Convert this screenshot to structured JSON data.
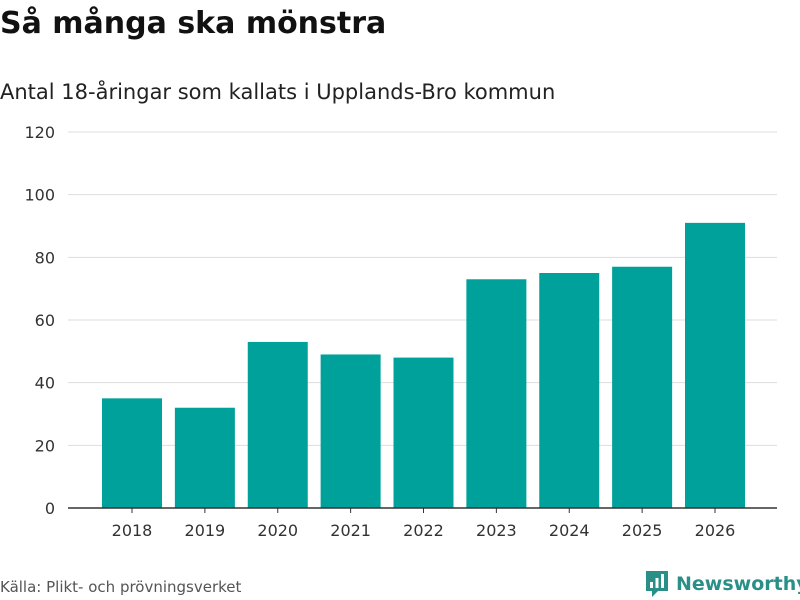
{
  "title": "Så många ska mönstra",
  "subtitle": "Antal 18-åringar som kallats i Upplands-Bro kommun",
  "source": "Källa: Plikt- och prövningsverket",
  "brand": "Newsworthy",
  "icon": "newsworthy-logo-icon",
  "colors": {
    "bar": "#00a19a",
    "grid": "#dddddd",
    "axis": "#333333",
    "brand": "#2a8f86"
  },
  "chart_data": {
    "type": "bar",
    "title": "Så många ska mönstra",
    "subtitle": "Antal 18-åringar som kallats i Upplands-Bro kommun",
    "xlabel": "",
    "ylabel": "",
    "categories": [
      "2018",
      "2019",
      "2020",
      "2021",
      "2022",
      "2023",
      "2024",
      "2025",
      "2026"
    ],
    "values": [
      35,
      32,
      53,
      49,
      48,
      73,
      75,
      77,
      91
    ],
    "ylim": [
      0,
      120
    ],
    "yticks": [
      0,
      20,
      40,
      60,
      80,
      100,
      120
    ],
    "grid": true
  }
}
